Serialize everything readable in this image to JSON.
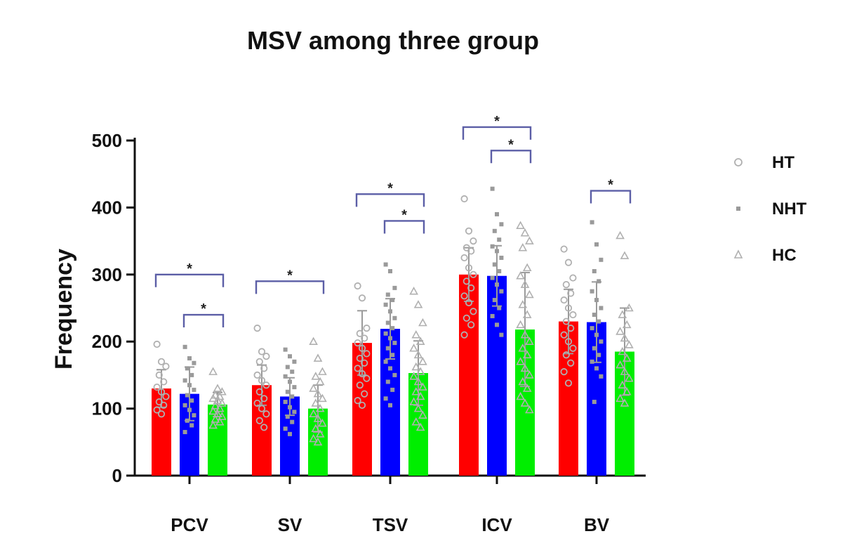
{
  "chart_data": {
    "type": "bar",
    "title": "MSV among three group",
    "xlabel": "",
    "ylabel": "Frequency",
    "ylim": [
      0,
      500
    ],
    "yticks": [
      0,
      100,
      200,
      300,
      400,
      500
    ],
    "categories": [
      "PCV",
      "SV",
      "TSV",
      "ICV",
      "BV"
    ],
    "series": [
      {
        "name": "HT",
        "color": "#ff0000",
        "marker": "circle",
        "values": [
          130,
          135,
          198,
          300,
          230
        ],
        "errors": [
          28,
          30,
          48,
          40,
          48
        ],
        "points": [
          [
            196,
            170,
            163,
            150,
            140,
            132,
            125,
            118,
            110,
            105,
            98,
            92
          ],
          [
            220,
            185,
            178,
            170,
            160,
            150,
            142,
            135,
            125,
            115,
            108,
            100,
            92,
            82,
            72
          ],
          [
            283,
            265,
            220,
            212,
            205,
            198,
            190,
            182,
            175,
            168,
            160,
            152,
            145,
            135,
            122,
            112,
            105
          ],
          [
            413,
            365,
            350,
            340,
            335,
            325,
            310,
            300,
            290,
            280,
            268,
            258,
            245,
            235,
            225,
            210
          ],
          [
            338,
            318,
            295,
            285,
            272,
            262,
            250,
            240,
            230,
            220,
            210,
            200,
            190,
            180,
            168,
            155,
            138
          ]
        ]
      },
      {
        "name": "NHT",
        "color": "#0000ff",
        "marker": "square",
        "values": [
          122,
          118,
          219,
          298,
          229
        ],
        "errors": [
          40,
          28,
          45,
          45,
          60
        ],
        "points": [
          [
            192,
            175,
            168,
            160,
            150,
            142,
            135,
            128,
            120,
            112,
            105,
            98,
            90,
            82,
            75,
            65
          ],
          [
            188,
            178,
            170,
            162,
            155,
            148,
            140,
            132,
            125,
            118,
            110,
            102,
            95,
            88,
            80,
            70,
            62
          ],
          [
            315,
            305,
            280,
            270,
            262,
            255,
            245,
            235,
            228,
            220,
            212,
            205,
            198,
            190,
            180,
            170,
            160,
            150,
            140,
            128,
            115,
            105
          ],
          [
            428,
            390,
            375,
            365,
            352,
            342,
            335,
            325,
            315,
            305,
            295,
            285,
            275,
            262,
            250,
            238,
            225,
            210
          ],
          [
            378,
            345,
            322,
            305,
            290,
            275,
            262,
            250,
            240,
            230,
            220,
            210,
            200,
            190,
            180,
            170,
            160,
            148,
            110
          ]
        ]
      },
      {
        "name": "HC",
        "color": "#00ee00",
        "marker": "triangle",
        "values": [
          106,
          100,
          153,
          218,
          185
        ],
        "errors": [
          18,
          35,
          48,
          85,
          65
        ],
        "points": [
          [
            155,
            130,
            125,
            120,
            118,
            115,
            112,
            108,
            104,
            100,
            96,
            92,
            88,
            84,
            80,
            75
          ],
          [
            200,
            175,
            155,
            148,
            140,
            130,
            122,
            115,
            108,
            100,
            92,
            85,
            78,
            70,
            62,
            55,
            50
          ],
          [
            275,
            255,
            228,
            210,
            200,
            190,
            180,
            170,
            162,
            155,
            148,
            140,
            132,
            125,
            118,
            110,
            100,
            90,
            80,
            72
          ],
          [
            373,
            362,
            350,
            340,
            310,
            298,
            285,
            270,
            255,
            240,
            225,
            210,
            200,
            190,
            180,
            170,
            160,
            150,
            140,
            130,
            118,
            108,
            98
          ],
          [
            358,
            328,
            250,
            240,
            225,
            215,
            205,
            195,
            185,
            175,
            165,
            155,
            145,
            135,
            125,
            115,
            108
          ]
        ]
      }
    ],
    "significance": [
      {
        "category": 0,
        "from": 0,
        "to": 2,
        "level": 300,
        "label": "*"
      },
      {
        "category": 0,
        "from": 1,
        "to": 2,
        "level": 240,
        "label": "*"
      },
      {
        "category": 1,
        "from": 0,
        "to": 2,
        "level": 290,
        "label": "*"
      },
      {
        "category": 2,
        "from": 0,
        "to": 2,
        "level": 420,
        "label": "*"
      },
      {
        "category": 2,
        "from": 1,
        "to": 2,
        "level": 380,
        "label": "*"
      },
      {
        "category": 3,
        "from": 0,
        "to": 2,
        "level": 520,
        "label": "*"
      },
      {
        "category": 3,
        "from": 1,
        "to": 2,
        "level": 485,
        "label": "*"
      },
      {
        "category": 4,
        "from": 1,
        "to": 2,
        "level": 425,
        "label": "*"
      }
    ],
    "legend": {
      "position": "right",
      "entries": [
        "HT",
        "NHT",
        "HC"
      ]
    },
    "grid": false
  }
}
